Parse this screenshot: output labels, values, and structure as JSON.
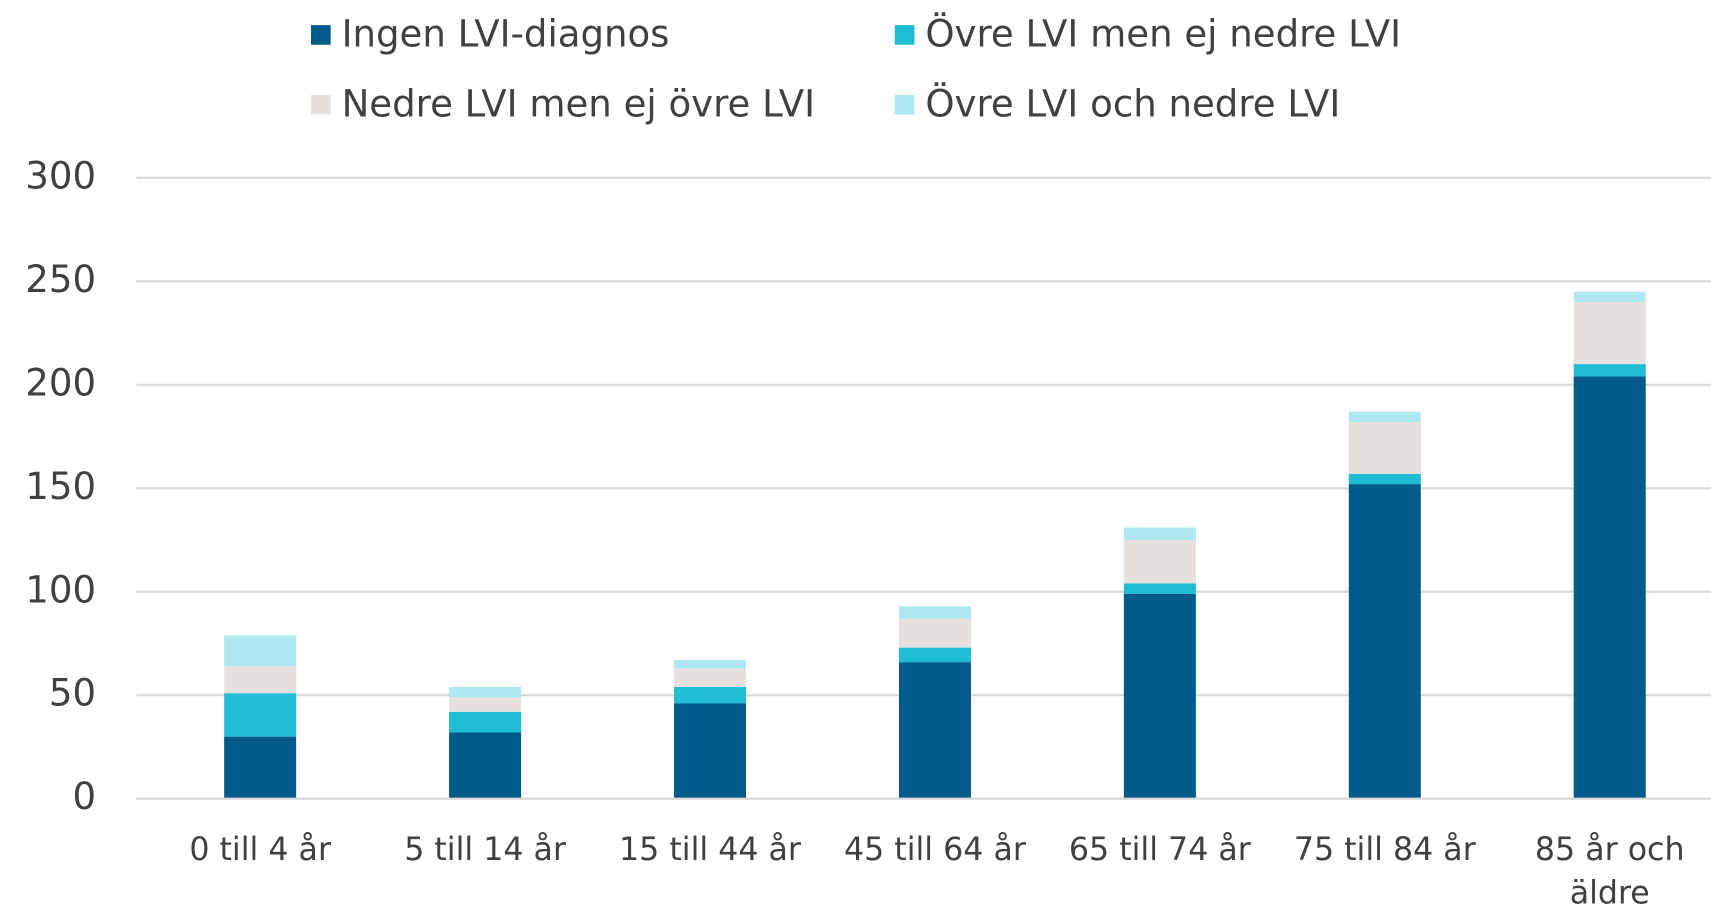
{
  "chart_data": {
    "type": "stacked_bar",
    "categories": [
      "0 till 4 år",
      "5 till 14 år",
      "15 till 44 år",
      "45 till 64 år",
      "65 till 74 år",
      "75 till 84 år",
      "85 år och äldre"
    ],
    "series": [
      {
        "name": "Ingen LVI-diagnos",
        "color": "#005b8a",
        "values": [
          30,
          32,
          46,
          66,
          99,
          152,
          204
        ]
      },
      {
        "name": "Övre LVI men ej nedre LVI",
        "color": "#1fbcd2",
        "values": [
          21,
          10,
          8,
          7,
          5,
          5,
          6
        ]
      },
      {
        "name": "Nedre LVI men ej övre LVI",
        "color": "#e6e1de",
        "values": [
          13,
          7,
          9,
          14,
          21,
          25,
          30
        ]
      },
      {
        "name": "Övre LVI och nedre LVI",
        "color": "#afe8f0",
        "values": [
          15,
          5,
          4,
          6,
          6,
          5,
          5
        ]
      }
    ],
    "ylim": [
      0,
      300
    ],
    "yticks": [
      0,
      50,
      100,
      150,
      200,
      250,
      300
    ],
    "grid": true,
    "legend": "top"
  }
}
